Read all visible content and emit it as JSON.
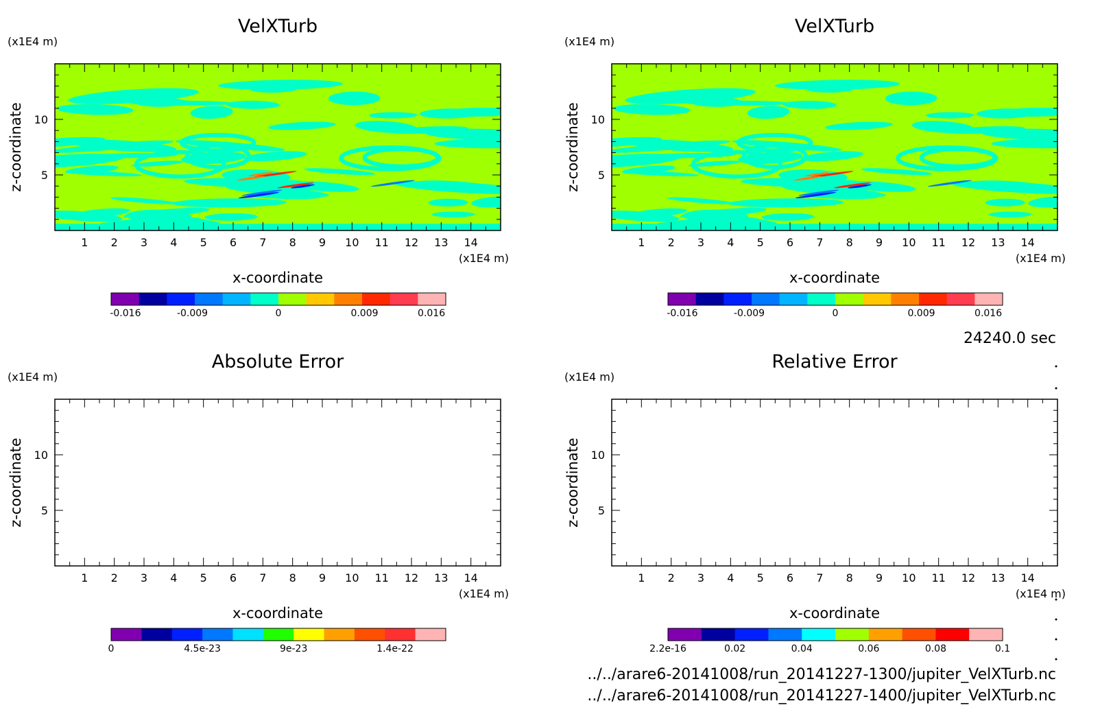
{
  "page": {
    "timestamp": "24240.0 sec"
  },
  "files": [
    "../../arare6-20141008/run_20141227-1300/jupiter_VelXTurb.nc",
    "../../arare6-20141008/run_20141227-1400/jupiter_VelXTurb.nc"
  ],
  "chart_data": [
    {
      "type": "heatmap",
      "title": "VelXTurb",
      "xlabel": "x-coordinate",
      "ylabel": "z-coordinate",
      "xunit": "(x1E4 m)",
      "yunit": "(x1E4 m)",
      "xlim": [
        0,
        15
      ],
      "ylim": [
        0,
        15
      ],
      "xticks": [
        1,
        2,
        3,
        4,
        5,
        6,
        7,
        8,
        9,
        10,
        11,
        12,
        13,
        14
      ],
      "yticks": [
        5,
        10
      ],
      "field": "filled",
      "colorbar": {
        "colors": [
          "#8000b0",
          "#0000a0",
          "#0020ff",
          "#0078ff",
          "#00b4ff",
          "#00ffc8",
          "#a0ff00",
          "#ffc800",
          "#ff8000",
          "#ff2800",
          "#ff3c50",
          "#ffb4b4"
        ],
        "ticks": [
          "-0.016",
          "-0.009",
          "0",
          "0.009",
          "0.016"
        ],
        "tick_values": [
          -0.016,
          -0.009,
          0,
          0.009,
          0.016
        ],
        "range": [
          -0.0175,
          0.0175
        ]
      }
    },
    {
      "type": "heatmap",
      "title": "VelXTurb",
      "xlabel": "x-coordinate",
      "ylabel": "z-coordinate",
      "xunit": "(x1E4 m)",
      "yunit": "(x1E4 m)",
      "xlim": [
        0,
        15
      ],
      "ylim": [
        0,
        15
      ],
      "xticks": [
        1,
        2,
        3,
        4,
        5,
        6,
        7,
        8,
        9,
        10,
        11,
        12,
        13,
        14
      ],
      "yticks": [
        5,
        10
      ],
      "field": "filled",
      "colorbar": {
        "colors": [
          "#8000b0",
          "#0000a0",
          "#0020ff",
          "#0078ff",
          "#00b4ff",
          "#00ffc8",
          "#a0ff00",
          "#ffc800",
          "#ff8000",
          "#ff2800",
          "#ff3c50",
          "#ffb4b4"
        ],
        "ticks": [
          "-0.016",
          "-0.009",
          "0",
          "0.009",
          "0.016"
        ],
        "tick_values": [
          -0.016,
          -0.009,
          0,
          0.009,
          0.016
        ],
        "range": [
          -0.0175,
          0.0175
        ]
      }
    },
    {
      "type": "heatmap",
      "title": "Absolute Error",
      "xlabel": "x-coordinate",
      "ylabel": "z-coordinate",
      "xunit": "(x1E4 m)",
      "yunit": "(x1E4 m)",
      "xlim": [
        0,
        15
      ],
      "ylim": [
        0,
        15
      ],
      "xticks": [
        1,
        2,
        3,
        4,
        5,
        6,
        7,
        8,
        9,
        10,
        11,
        12,
        13,
        14
      ],
      "yticks": [
        5,
        10
      ],
      "field": "empty",
      "colorbar": {
        "colors": [
          "#8000b0",
          "#0000a0",
          "#0020ff",
          "#0078ff",
          "#00e0ff",
          "#20ff00",
          "#ffff00",
          "#ffa000",
          "#ff5000",
          "#ff3030",
          "#ffb4b4"
        ],
        "ticks": [
          "0",
          "4.5e-23",
          "9e-23",
          "1.4e-22"
        ],
        "tick_values": [
          0,
          4.5e-23,
          9e-23,
          1.4e-22
        ],
        "range": [
          0,
          1.65e-22
        ]
      }
    },
    {
      "type": "heatmap",
      "title": "Relative Error",
      "xlabel": "x-coordinate",
      "ylabel": "z-coordinate",
      "xunit": "(x1E4 m)",
      "yunit": "(x1E4 m)",
      "xlim": [
        0,
        15
      ],
      "ylim": [
        0,
        15
      ],
      "xticks": [
        1,
        2,
        3,
        4,
        5,
        6,
        7,
        8,
        9,
        10,
        11,
        12,
        13,
        14
      ],
      "yticks": [
        5,
        10
      ],
      "field": "empty",
      "colorbar": {
        "colors": [
          "#8000b0",
          "#0000a0",
          "#0020ff",
          "#0078ff",
          "#00ffff",
          "#a0ff00",
          "#ffa000",
          "#ff5000",
          "#ff0000",
          "#ffb4b4"
        ],
        "ticks": [
          "2.2e-16",
          "0.02",
          "0.04",
          "0.06",
          "0.08",
          "0.1"
        ],
        "tick_values": [
          0,
          0.02,
          0.04,
          0.06,
          0.08,
          0.1
        ],
        "range": [
          0,
          0.1
        ]
      }
    }
  ]
}
